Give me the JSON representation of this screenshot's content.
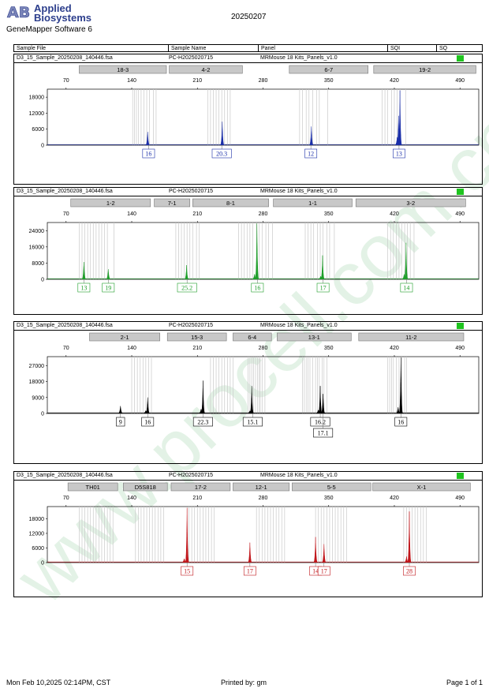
{
  "header": {
    "logo_mark": "AB",
    "brand_line1": "Applied",
    "brand_line2": "Biosystems",
    "software": "GeneMapper Software 6",
    "report_date": "20250207"
  },
  "columns": [
    "Sample File",
    "Sample Name",
    "Panel",
    "SQI",
    "SQ"
  ],
  "sample": {
    "file": "D3_15_Sample_20250208_140446.fsa",
    "name": "PC-H2025020715",
    "panel": "MRMouse 18 Kits_Panels_v1.0"
  },
  "footer": {
    "printed_at": "Mon Feb 10,2025 02:14PM, CST",
    "printed_by": "Printed by: gm",
    "page": "Page 1 of 1"
  },
  "colors": {
    "blue": "#1a2ea8",
    "green": "#1e9e2a",
    "black": "#000000",
    "red": "#c0151a",
    "sq_pass": "#1fc41f",
    "marker_fill": "#c8c8c8",
    "watermark": "#e3f2e6"
  },
  "watermark_text": "www.procell.com.cn",
  "chart_data": [
    {
      "type": "line",
      "color": "blue",
      "x_axis": {
        "range": [
          50,
          510
        ],
        "ticks": [
          70,
          140,
          210,
          280,
          350,
          420,
          490
        ]
      },
      "y_axis": {
        "range": [
          0,
          21000
        ],
        "ticks": [
          0,
          6000,
          12000,
          18000
        ]
      },
      "markers": [
        {
          "label": "18-3",
          "start": 84,
          "end": 177
        },
        {
          "label": "4-2",
          "start": 180,
          "end": 258
        },
        {
          "label": "6-7",
          "start": 308,
          "end": 392
        },
        {
          "label": "19-2",
          "start": 398,
          "end": 507
        }
      ],
      "bins": [
        141,
        143,
        145,
        147,
        150,
        153,
        156,
        159,
        163,
        166,
        221,
        224,
        227,
        230,
        233,
        236,
        239,
        242,
        245,
        319,
        322,
        326,
        329,
        333,
        337,
        340,
        349,
        407,
        410,
        413,
        417,
        420,
        423,
        426,
        432
      ],
      "peaks": [
        {
          "x": 157,
          "height": 5000
        },
        {
          "x": 236.5,
          "height": 8800
        },
        {
          "x": 331.5,
          "height": 7000
        },
        {
          "x": 423,
          "height": 3000
        },
        {
          "x": 424.5,
          "height": 11000
        },
        {
          "x": 426,
          "height": 20500
        }
      ],
      "alleles": [
        {
          "label": "16",
          "x": 158
        },
        {
          "label": "20.3",
          "x": 236
        },
        {
          "label": "12",
          "x": 331
        },
        {
          "label": "13",
          "x": 425
        }
      ]
    },
    {
      "type": "line",
      "color": "green",
      "x_axis": {
        "range": [
          50,
          510
        ],
        "ticks": [
          70,
          140,
          210,
          280,
          350,
          420,
          490
        ]
      },
      "y_axis": {
        "range": [
          0,
          28000
        ],
        "ticks": [
          0,
          8000,
          16000,
          24000
        ]
      },
      "markers": [
        {
          "label": "1-2",
          "start": 75,
          "end": 160
        },
        {
          "label": "7-1",
          "start": 164,
          "end": 202
        },
        {
          "label": "8-1",
          "start": 205,
          "end": 286
        },
        {
          "label": "1-1",
          "start": 291,
          "end": 375
        },
        {
          "label": "3-2",
          "start": 379,
          "end": 496
        }
      ],
      "bins": [
        84,
        87,
        90,
        93,
        96,
        99,
        102,
        105,
        108,
        111,
        114,
        121,
        187,
        190,
        193,
        196,
        199,
        202,
        205,
        209,
        212,
        254,
        257,
        260,
        263,
        266,
        269,
        273,
        276,
        279,
        283,
        286,
        290,
        325,
        328,
        331,
        334,
        338,
        341,
        344,
        348,
        351,
        356,
        413,
        416,
        419,
        422,
        425,
        428,
        431,
        434,
        437,
        441
      ],
      "peaks": [
        {
          "x": 89,
          "height": 8500
        },
        {
          "x": 115,
          "height": 5000
        },
        {
          "x": 198.5,
          "height": 7000
        },
        {
          "x": 271,
          "height": 2600
        },
        {
          "x": 273.5,
          "height": 27500
        },
        {
          "x": 341.5,
          "height": 1500
        },
        {
          "x": 343.5,
          "height": 11800
        },
        {
          "x": 430.5,
          "height": 2500
        },
        {
          "x": 432.5,
          "height": 18000
        }
      ],
      "alleles": [
        {
          "label": "13",
          "x": 89
        },
        {
          "label": "19",
          "x": 115
        },
        {
          "label": "25.2",
          "x": 199
        },
        {
          "label": "16",
          "x": 274
        },
        {
          "label": "17",
          "x": 344
        },
        {
          "label": "14",
          "x": 433
        }
      ]
    },
    {
      "type": "line",
      "color": "black",
      "x_axis": {
        "range": [
          50,
          510
        ],
        "ticks": [
          70,
          140,
          210,
          280,
          350,
          420,
          490
        ]
      },
      "y_axis": {
        "range": [
          0,
          32000
        ],
        "ticks": [
          0,
          9000,
          18000,
          27000
        ]
      },
      "markers": [
        {
          "label": "2-1",
          "start": 95,
          "end": 170
        },
        {
          "label": "15-3",
          "start": 178,
          "end": 241
        },
        {
          "label": "6-4",
          "start": 248,
          "end": 289
        },
        {
          "label": "13-1",
          "start": 295,
          "end": 374
        },
        {
          "label": "11-2",
          "start": 382,
          "end": 494
        }
      ],
      "bins": [
        140,
        143,
        146,
        149,
        152,
        155,
        158,
        161,
        224,
        227,
        230,
        233,
        236,
        239,
        242,
        245,
        248,
        264,
        266,
        268,
        270,
        272,
        274,
        276,
        277,
        279,
        282,
        322,
        324,
        326,
        328,
        330,
        333,
        336,
        338,
        340,
        343,
        345,
        348,
        413,
        415,
        417,
        419,
        422,
        425,
        428,
        431,
        433
      ],
      "peaks": [
        {
          "x": 128,
          "height": 4200
        },
        {
          "x": 155,
          "height": 1600
        },
        {
          "x": 157,
          "height": 9000
        },
        {
          "x": 214,
          "height": 2500
        },
        {
          "x": 216,
          "height": 18500
        },
        {
          "x": 266,
          "height": 1500
        },
        {
          "x": 268,
          "height": 15500
        },
        {
          "x": 339,
          "height": 2000
        },
        {
          "x": 341,
          "height": 15500
        },
        {
          "x": 344,
          "height": 11000
        },
        {
          "x": 424,
          "height": 3500
        },
        {
          "x": 427,
          "height": 31500
        }
      ],
      "alleles": [
        {
          "label": "9",
          "x": 128
        },
        {
          "label": "16",
          "x": 157
        },
        {
          "label": "22.3",
          "x": 216
        },
        {
          "label": "15.1",
          "x": 269
        },
        {
          "label": "16.2",
          "x": 341
        },
        {
          "label": "17.1",
          "x": 344,
          "row": 2
        },
        {
          "label": "16",
          "x": 427
        }
      ]
    },
    {
      "type": "line",
      "color": "red",
      "x_axis": {
        "range": [
          50,
          510
        ],
        "ticks": [
          70,
          140,
          210,
          280,
          350,
          420,
          490
        ]
      },
      "y_axis": {
        "range": [
          0,
          23000
        ],
        "ticks": [
          0,
          6000,
          12000,
          18000
        ]
      },
      "markers": [
        {
          "label": "TH01",
          "start": 72,
          "end": 125
        },
        {
          "label": "D5S818",
          "start": 131,
          "end": 178
        },
        {
          "label": "17-2",
          "start": 182,
          "end": 245
        },
        {
          "label": "12-1",
          "start": 248,
          "end": 308
        },
        {
          "label": "5-5",
          "start": 311,
          "end": 395
        },
        {
          "label": "X-1",
          "start": 397,
          "end": 501
        }
      ],
      "bins": [
        84,
        87,
        90,
        93,
        96,
        99,
        102,
        105,
        108,
        111,
        114,
        117,
        120,
        144,
        147,
        150,
        153,
        156,
        159,
        162,
        165,
        168,
        171,
        174,
        201,
        204,
        207,
        210,
        213,
        216,
        219,
        222,
        225,
        228,
        273,
        276,
        279,
        282,
        285,
        288,
        291,
        294,
        297,
        300,
        303,
        336,
        339,
        342,
        345,
        348,
        351,
        354,
        357,
        360,
        363,
        366,
        369,
        430,
        433,
        436,
        439,
        442,
        445,
        448,
        451,
        454
      ],
      "peaks": [
        {
          "x": 196,
          "height": 1600
        },
        {
          "x": 199,
          "height": 22500
        },
        {
          "x": 266,
          "height": 8200
        },
        {
          "x": 336,
          "height": 10500
        },
        {
          "x": 345,
          "height": 7600
        },
        {
          "x": 433,
          "height": 2500
        },
        {
          "x": 436,
          "height": 21000
        }
      ],
      "alleles": [
        {
          "label": "15",
          "x": 199
        },
        {
          "label": "17",
          "x": 266
        },
        {
          "label": "14",
          "x": 336
        },
        {
          "label": "17",
          "x": 345
        },
        {
          "label": "28",
          "x": 436
        }
      ]
    }
  ]
}
